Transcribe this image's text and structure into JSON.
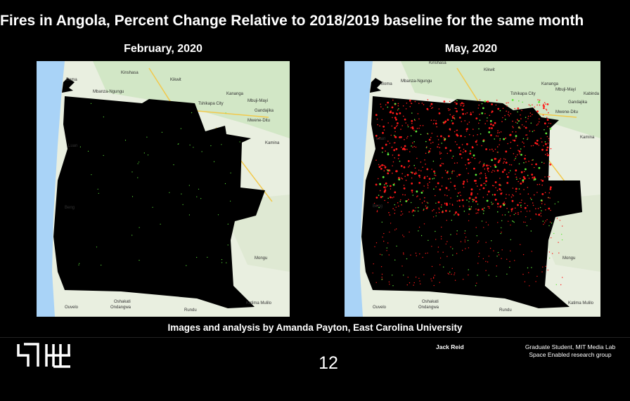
{
  "slide": {
    "title": "Fires in Angola, Percent Change Relative to 2018/2019 baseline for the same month",
    "caption": "Images and analysis by Amanda Payton, East Carolina University",
    "presenter_name": "Jack Reid",
    "presenter_affiliation_1": "Graduate Student, MIT Media Lab",
    "presenter_affiliation_2": "Space Enabled research group",
    "page_number": "12"
  },
  "maps": [
    {
      "label": "February, 2020",
      "places": [
        "Kinshasa",
        "Kikwit",
        "Boma",
        "Mbanza-Ngungu",
        "Tshikapa City",
        "Kananga",
        "Mbuji-Mayi",
        "Gandajika",
        "Mwene-Ditu",
        "Kamina",
        "Luan",
        "Beng",
        "Mongu",
        "Ondangwa",
        "Oshakati",
        "Katima Mulilo",
        "Rundu",
        "Ouvelo"
      ]
    },
    {
      "label": "May, 2020",
      "places": [
        "Kinshasa",
        "Kikwit",
        "Boma",
        "Mbanza-Ngungu",
        "Tshikapa City",
        "Kananga",
        "Mbuji-Mayi",
        "Kabinda",
        "Gandajika",
        "Mwene-Ditu",
        "Kamina",
        "Luan",
        "Beng",
        "Mongu",
        "Ondangwa",
        "Oshakati",
        "Katima Mulilo",
        "Rundu",
        "Ouvelo"
      ]
    }
  ],
  "colors": {
    "background": "#000000",
    "ocean": "#a9d3f7",
    "land": "#e9efe0",
    "vegetation": "#cfe5c3",
    "angola_mask": "#000000",
    "fire_increase": "#ff1a1a",
    "fire_decrease": "#5eea3a"
  }
}
